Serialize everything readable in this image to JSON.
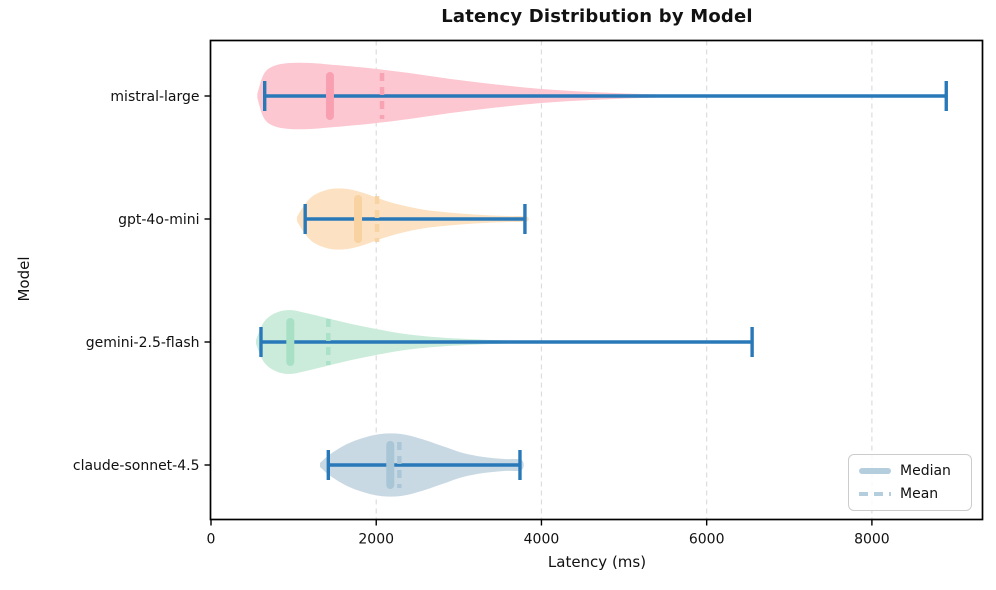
{
  "chart_data": {
    "type": "violin",
    "orientation": "horizontal",
    "title": "Latency Distribution by Model",
    "xlabel": "Latency (ms)",
    "ylabel": "Model",
    "x_ticks": [
      0,
      2000,
      4000,
      6000,
      8000
    ],
    "xlim": [
      0,
      9340
    ],
    "grid": "vertical-dashed",
    "legend_position": "lower right",
    "style": {
      "whisker_color": "#2979b9",
      "grid_color": "#dcdcdc",
      "axis_color": "#000000",
      "legend_swatch": "#b4cedd"
    },
    "series": [
      {
        "model": "mistral-large",
        "min": 650,
        "max": 8900,
        "median": 1440,
        "mean": 2070,
        "fill": "#fcc7d1",
        "marker": "#f8a0b1",
        "width_profile": [
          [
            560,
            2
          ],
          [
            640,
            22
          ],
          [
            760,
            30
          ],
          [
            950,
            33
          ],
          [
            1200,
            33
          ],
          [
            1500,
            31
          ],
          [
            1900,
            28
          ],
          [
            2400,
            23
          ],
          [
            2900,
            17
          ],
          [
            3400,
            12
          ],
          [
            4000,
            7
          ],
          [
            4600,
            4
          ],
          [
            5200,
            2
          ],
          [
            5700,
            0.7
          ]
        ]
      },
      {
        "model": "gpt-4o-mini",
        "min": 1140,
        "max": 3800,
        "median": 1780,
        "mean": 2010,
        "fill": "#fce2c2",
        "marker": "#f8d2a0",
        "width_profile": [
          [
            1040,
            2
          ],
          [
            1130,
            14
          ],
          [
            1250,
            24
          ],
          [
            1450,
            30
          ],
          [
            1650,
            30
          ],
          [
            1850,
            26
          ],
          [
            2050,
            20
          ],
          [
            2300,
            14
          ],
          [
            2600,
            9
          ],
          [
            2950,
            6
          ],
          [
            3300,
            4
          ],
          [
            3600,
            3
          ],
          [
            3820,
            2.5
          ]
        ]
      },
      {
        "model": "gemini-2.5-flash",
        "min": 605,
        "max": 6550,
        "median": 960,
        "mean": 1420,
        "fill": "#cbecdb",
        "marker": "#a8e0c6",
        "width_profile": [
          [
            545,
            2
          ],
          [
            640,
            20
          ],
          [
            780,
            29
          ],
          [
            950,
            32
          ],
          [
            1150,
            29
          ],
          [
            1400,
            24
          ],
          [
            1700,
            18
          ],
          [
            2000,
            13
          ],
          [
            2350,
            8
          ],
          [
            2700,
            5
          ],
          [
            3100,
            3
          ],
          [
            3600,
            1.5
          ],
          [
            4100,
            0.8
          ]
        ]
      },
      {
        "model": "claude-sonnet-4.5",
        "min": 1420,
        "max": 3740,
        "median": 2170,
        "mean": 2280,
        "fill": "#c9d9e3",
        "marker": "#a8c6d6",
        "width_profile": [
          [
            1320,
            2
          ],
          [
            1430,
            10
          ],
          [
            1600,
            19
          ],
          [
            1800,
            26
          ],
          [
            2050,
            31
          ],
          [
            2300,
            31
          ],
          [
            2550,
            26
          ],
          [
            2800,
            19
          ],
          [
            3050,
            12
          ],
          [
            3300,
            8
          ],
          [
            3550,
            6
          ],
          [
            3760,
            5
          ]
        ]
      }
    ]
  },
  "legend": {
    "median_label": "Median",
    "mean_label": "Mean"
  }
}
